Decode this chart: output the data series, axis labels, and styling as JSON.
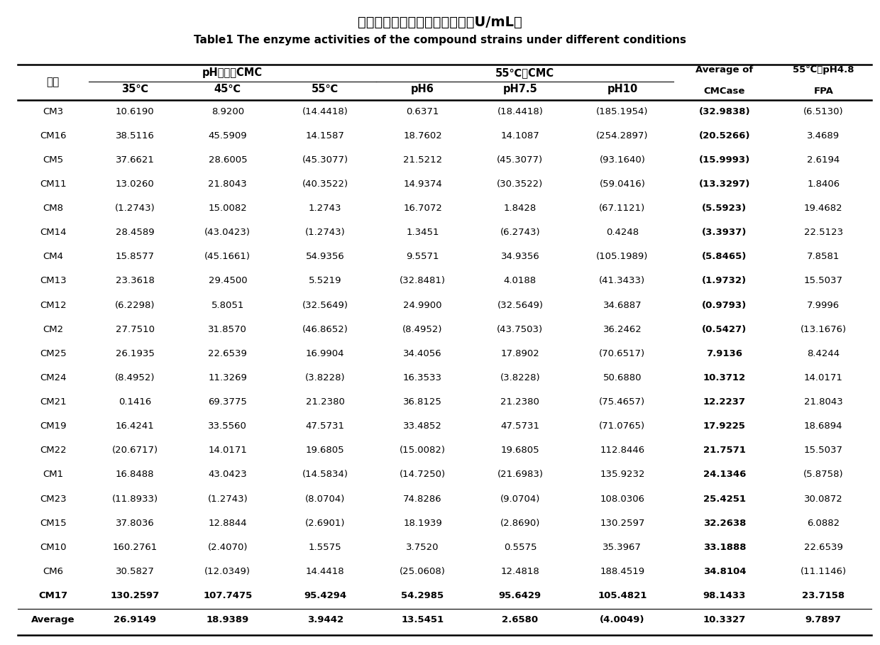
{
  "title_cn": "复合菌系在不同条件下的酶活（U/mL）",
  "title_en": "Table1 The enzyme activities of the compound strains under different conditions",
  "rows": [
    [
      "CM3",
      "10.6190",
      "8.9200",
      "(14.4418)",
      "0.6371",
      "(18.4418)",
      "(185.1954)",
      "(32.9838)",
      "(6.5130)"
    ],
    [
      "CM16",
      "38.5116",
      "45.5909",
      "14.1587",
      "18.7602",
      "14.1087",
      "(254.2897)",
      "(20.5266)",
      "3.4689"
    ],
    [
      "CM5",
      "37.6621",
      "28.6005",
      "(45.3077)",
      "21.5212",
      "(45.3077)",
      "(93.1640)",
      "(15.9993)",
      "2.6194"
    ],
    [
      "CM11",
      "13.0260",
      "21.8043",
      "(40.3522)",
      "14.9374",
      "(30.3522)",
      "(59.0416)",
      "(13.3297)",
      "1.8406"
    ],
    [
      "CM8",
      "(1.2743)",
      "15.0082",
      "1.2743",
      "16.7072",
      "1.8428",
      "(67.1121)",
      "(5.5923)",
      "19.4682"
    ],
    [
      "CM14",
      "28.4589",
      "(43.0423)",
      "(1.2743)",
      "1.3451",
      "(6.2743)",
      "0.4248",
      "(3.3937)",
      "22.5123"
    ],
    [
      "CM4",
      "15.8577",
      "(45.1661)",
      "54.9356",
      "9.5571",
      "34.9356",
      "(105.1989)",
      "(5.8465)",
      "7.8581"
    ],
    [
      "CM13",
      "23.3618",
      "29.4500",
      "5.5219",
      "(32.8481)",
      "4.0188",
      "(41.3433)",
      "(1.9732)",
      "15.5037"
    ],
    [
      "CM12",
      "(6.2298)",
      "5.8051",
      "(32.5649)",
      "24.9900",
      "(32.5649)",
      "34.6887",
      "(0.9793)",
      "7.9996"
    ],
    [
      "CM2",
      "27.7510",
      "31.8570",
      "(46.8652)",
      "(8.4952)",
      "(43.7503)",
      "36.2462",
      "(0.5427)",
      "(13.1676)"
    ],
    [
      "CM25",
      "26.1935",
      "22.6539",
      "16.9904",
      "34.4056",
      "17.8902",
      "(70.6517)",
      "7.9136",
      "8.4244"
    ],
    [
      "CM24",
      "(8.4952)",
      "11.3269",
      "(3.8228)",
      "16.3533",
      "(3.8228)",
      "50.6880",
      "10.3712",
      "14.0171"
    ],
    [
      "CM21",
      "0.1416",
      "69.3775",
      "21.2380",
      "36.8125",
      "21.2380",
      "(75.4657)",
      "12.2237",
      "21.8043"
    ],
    [
      "CM19",
      "16.4241",
      "33.5560",
      "47.5731",
      "33.4852",
      "47.5731",
      "(71.0765)",
      "17.9225",
      "18.6894"
    ],
    [
      "CM22",
      "(20.6717)",
      "14.0171",
      "19.6805",
      "(15.0082)",
      "19.6805",
      "112.8446",
      "21.7571",
      "15.5037"
    ],
    [
      "CM1",
      "16.8488",
      "43.0423",
      "(14.5834)",
      "(14.7250)",
      "(21.6983)",
      "135.9232",
      "24.1346",
      "(5.8758)"
    ],
    [
      "CM23",
      "(11.8933)",
      "(1.2743)",
      "(8.0704)",
      "74.8286",
      "(9.0704)",
      "108.0306",
      "25.4251",
      "30.0872"
    ],
    [
      "CM15",
      "37.8036",
      "12.8844",
      "(2.6901)",
      "18.1939",
      "(2.8690)",
      "130.2597",
      "32.2638",
      "6.0882"
    ],
    [
      "CM10",
      "160.2761",
      "(2.4070)",
      "1.5575",
      "3.7520",
      "0.5575",
      "35.3967",
      "33.1888",
      "22.6539"
    ],
    [
      "CM6",
      "30.5827",
      "(12.0349)",
      "14.4418",
      "(25.0608)",
      "12.4818",
      "188.4519",
      "34.8104",
      "(11.1146)"
    ],
    [
      "CM17",
      "130.2597",
      "107.7475",
      "95.4294",
      "54.2985",
      "95.6429",
      "105.4821",
      "98.1433",
      "23.7158"
    ]
  ],
  "avg_row": [
    "Average",
    "26.9149",
    "18.9389",
    "3.9442",
    "13.5451",
    "2.6580",
    "(4.0049)",
    "10.3327",
    "9.7897"
  ],
  "bold_rows": [
    "CM17"
  ],
  "header_group1": "pH自然／CMC",
  "header_group2": "55℃／CMC",
  "header_leixie": "类别",
  "subheaders": [
    "35℃",
    "45℃",
    "55℃",
    "pH6",
    "pH7.5",
    "pH10"
  ],
  "header_avg": "Average of",
  "header_cmcase": "CMCase",
  "header_fpa_top": "55℃／pH4.8",
  "header_fpa_bot": "FPA"
}
